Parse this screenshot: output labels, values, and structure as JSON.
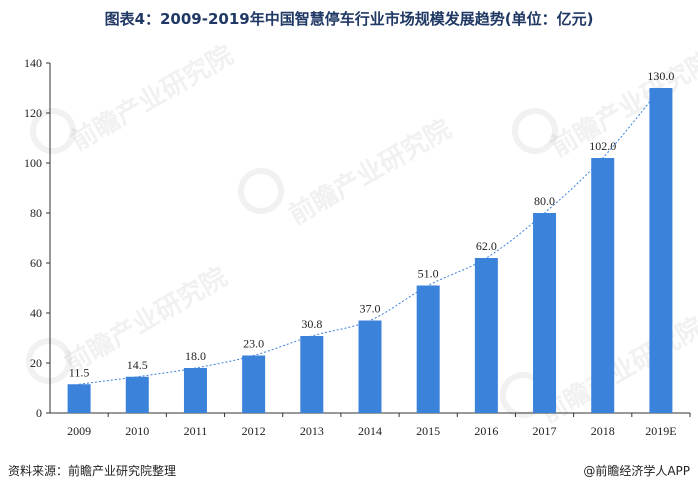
{
  "title": "图表4：2009-2019年中国智慧停车行业市场规模发展趋势(单位：亿元)",
  "source": "资料来源：前瞻产业研究院整理",
  "brand": "@前瞻经济学人APP",
  "watermark": "前瞻产业研究院",
  "colors": {
    "bar": "#3b82db",
    "trend": "#3b82db",
    "axis": "#333333"
  },
  "chart_data": {
    "type": "bar",
    "categories": [
      "2009",
      "2010",
      "2011",
      "2012",
      "2013",
      "2014",
      "2015",
      "2016",
      "2017",
      "2018",
      "2019E"
    ],
    "values": [
      11.5,
      14.5,
      18.0,
      23.0,
      30.8,
      37.0,
      51.0,
      62.0,
      80.0,
      102.0,
      130.0
    ],
    "value_labels": [
      "11.5",
      "14.5",
      "18.0",
      "23.0",
      "30.8",
      "37.0",
      "51.0",
      "62.0",
      "80.0",
      "102.0",
      "130.0"
    ],
    "yticks": [
      "0",
      "20",
      "40",
      "60",
      "80",
      "100",
      "120",
      "140"
    ],
    "ylim": [
      0,
      140
    ],
    "trendline": "dotted",
    "grid": false,
    "legend": "none"
  }
}
